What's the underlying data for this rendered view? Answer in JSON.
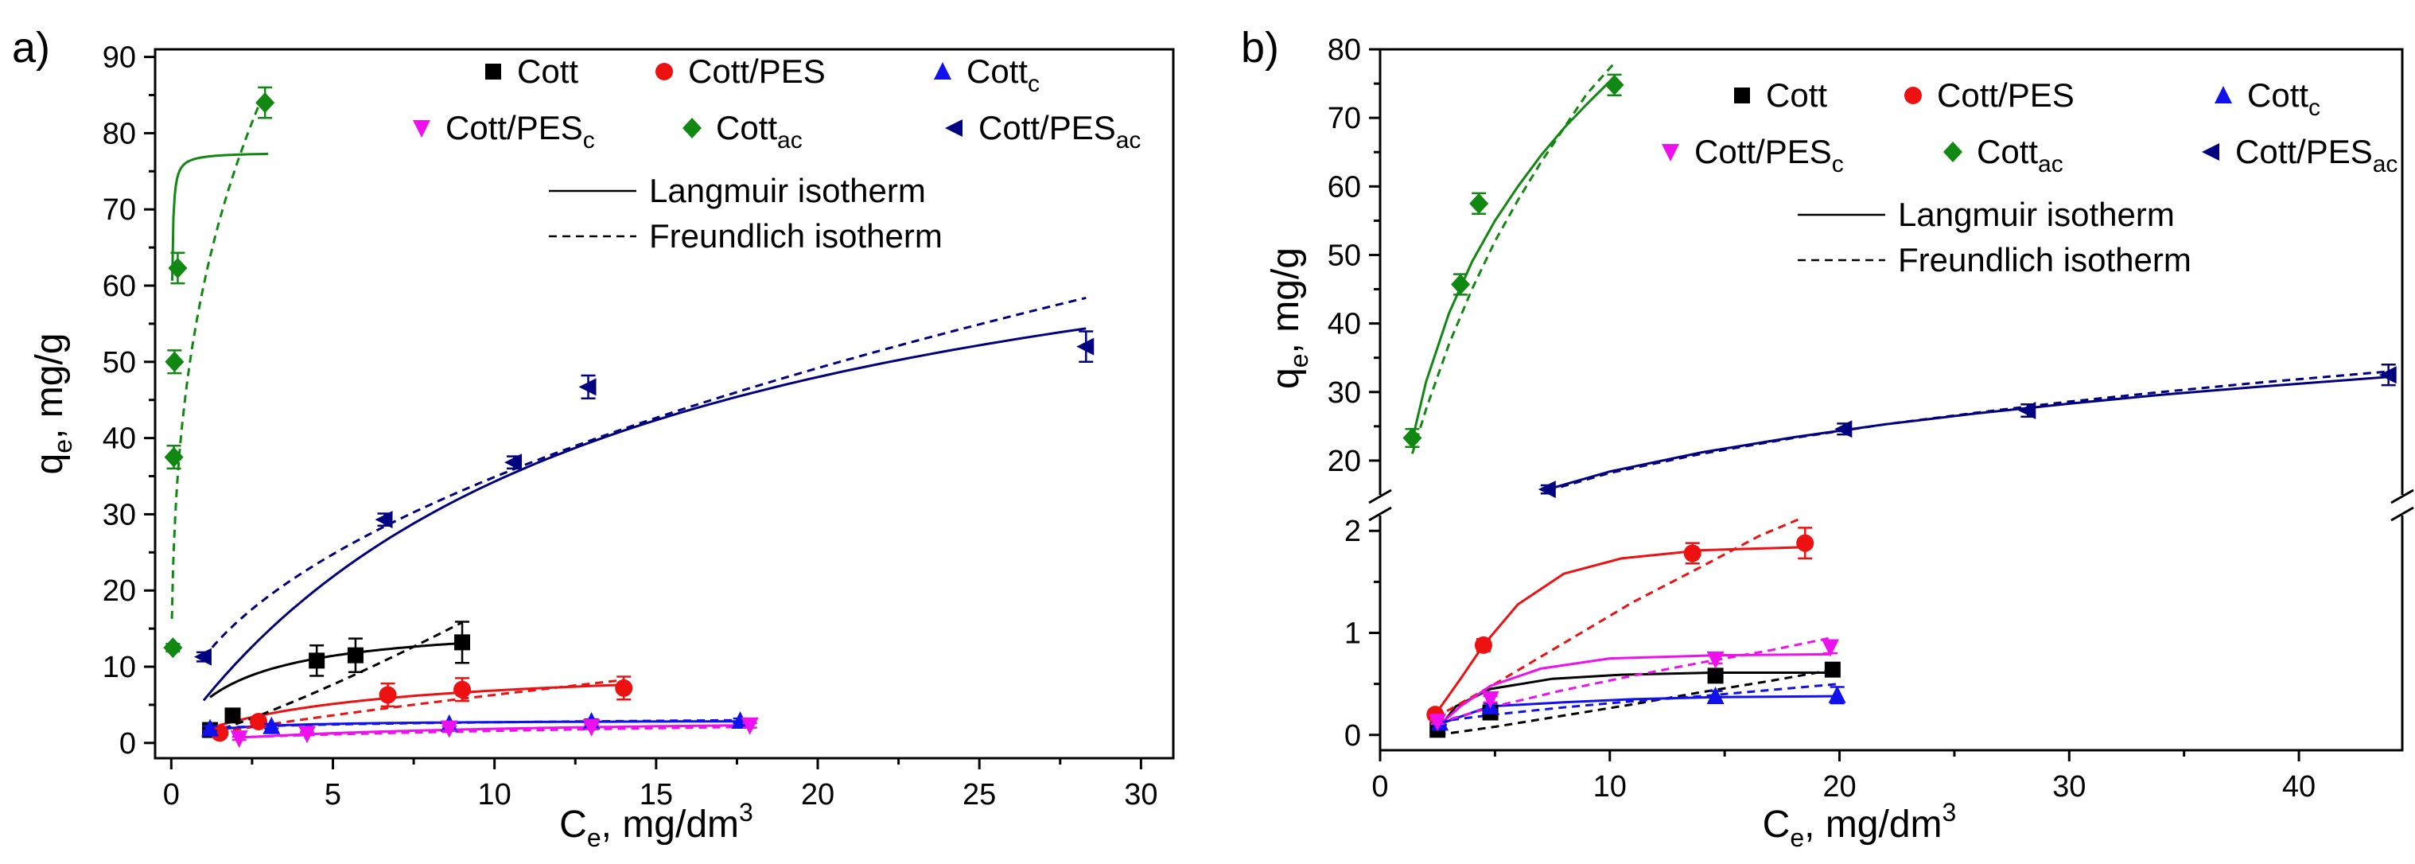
{
  "colors": {
    "Cott": "#000000",
    "Cott/PES": "#ee1111",
    "Cott_c": "#1111ee",
    "Cott/PES_c": "#ee11ee",
    "Cott_ac": "#118811",
    "Cott/PES_ac": "#000080"
  },
  "legend": {
    "entries": [
      {
        "key": "Cott",
        "base": "Cott",
        "sub": "",
        "marker": "square"
      },
      {
        "key": "Cott/PES",
        "base": "Cott/PES",
        "sub": "",
        "marker": "circle"
      },
      {
        "key": "Cott_c",
        "base": "Cott",
        "sub": "c",
        "marker": "triangle-up"
      },
      {
        "key": "Cott/PES_c",
        "base": "Cott/PES",
        "sub": "c",
        "marker": "triangle-down"
      },
      {
        "key": "Cott_ac",
        "base": "Cott",
        "sub": "ac",
        "marker": "diamond"
      },
      {
        "key": "Cott/PES_ac",
        "base": "Cott/PES",
        "sub": "ac",
        "marker": "triangle-left"
      }
    ],
    "line_entries": [
      {
        "label": "Langmuir isotherm",
        "style": "solid"
      },
      {
        "label": "Freundlich isotherm",
        "style": "dashed"
      }
    ]
  },
  "chart_data": [
    {
      "panel": "a)",
      "type": "scatter",
      "xlabel": {
        "main": "C",
        "sub": "e",
        "rest": ", mg/dm",
        "sup": "3"
      },
      "ylabel": {
        "main": "q",
        "sub": "e",
        "rest": ", mg/g"
      },
      "xlim": [
        -0.5,
        31
      ],
      "ylim": [
        -2,
        91
      ],
      "xticks": [
        0,
        5,
        10,
        15,
        20,
        25,
        30
      ],
      "yticks": [
        0,
        10,
        20,
        30,
        40,
        50,
        60,
        70,
        80,
        90
      ],
      "series": [
        {
          "name": "Cott",
          "points": [
            [
              1.2,
              1.7
            ],
            [
              1.9,
              3.6
            ],
            [
              4.5,
              10.8
            ],
            [
              5.7,
              11.5
            ],
            [
              9.0,
              13.2
            ]
          ],
          "errors": [
            0.4,
            0.6,
            2.0,
            2.2,
            2.7
          ]
        },
        {
          "name": "Cott/PES",
          "points": [
            [
              1.5,
              1.3
            ],
            [
              2.7,
              2.8
            ],
            [
              6.7,
              6.3
            ],
            [
              9.0,
              7.0
            ],
            [
              14.0,
              7.2
            ]
          ],
          "errors": [
            0.3,
            0.5,
            1.5,
            1.5,
            1.5
          ]
        },
        {
          "name": "Cott_c",
          "points": [
            [
              1.2,
              1.9
            ],
            [
              3.1,
              2.2
            ],
            [
              8.6,
              2.5
            ],
            [
              13.0,
              2.8
            ],
            [
              17.6,
              2.9
            ]
          ],
          "errors": [
            0.3,
            0.3,
            0.3,
            0.3,
            0.3
          ]
        },
        {
          "name": "Cott/PES_c",
          "points": [
            [
              2.1,
              0.6
            ],
            [
              4.2,
              1.2
            ],
            [
              8.6,
              1.9
            ],
            [
              13.0,
              2.1
            ],
            [
              17.9,
              2.3
            ]
          ],
          "errors": [
            0.2,
            0.2,
            0.3,
            0.3,
            0.3
          ]
        },
        {
          "name": "Cott_ac",
          "points": [
            [
              0.05,
              12.5
            ],
            [
              0.08,
              37.5
            ],
            [
              0.1,
              50.0
            ],
            [
              0.2,
              62.3
            ],
            [
              2.9,
              84.0
            ]
          ],
          "errors": [
            0.5,
            1.5,
            1.5,
            2.0,
            2.0
          ]
        },
        {
          "name": "Cott/PES_ac",
          "points": [
            [
              1.0,
              11.3
            ],
            [
              6.6,
              29.3
            ],
            [
              10.6,
              36.8
            ],
            [
              12.9,
              46.7
            ],
            [
              28.3,
              52.0
            ]
          ],
          "errors": [
            0.6,
            0.8,
            0.8,
            1.5,
            2.0
          ]
        }
      ],
      "langmuir": [
        {
          "name": "Cott",
          "qm": 16,
          "KL": 0.5,
          "x": [
            1.2,
            9.0
          ]
        },
        {
          "name": "Cott/PES",
          "qm": 10.5,
          "KL": 0.19,
          "x": [
            1.5,
            14.0
          ]
        },
        {
          "name": "Cott_c",
          "qm": 3.0,
          "KL": 1.0,
          "x": [
            1.2,
            17.6
          ]
        },
        {
          "name": "Cott/PES_c",
          "qm": 3.4,
          "KL": 0.12,
          "x": [
            2.1,
            17.9
          ]
        },
        {
          "name": "Cott_ac",
          "qm": 77.5,
          "KL": 120,
          "x": [
            0.03,
            3.0
          ]
        },
        {
          "name": "Cott/PES_ac",
          "qm": 80,
          "KL": 0.075,
          "x": [
            1.0,
            28.3
          ]
        }
      ],
      "freundlich": [
        {
          "name": "Cott",
          "KF": 1.05,
          "n": 0.81,
          "x": [
            1.2,
            9.0
          ]
        },
        {
          "name": "Cott/PES",
          "KF": 1.0,
          "n": 1.25,
          "x": [
            1.5,
            14.0
          ]
        },
        {
          "name": "Cott_c",
          "KF": 1.85,
          "n": 6.0,
          "x": [
            1.2,
            17.6
          ]
        },
        {
          "name": "Cott/PES_c",
          "KF": 0.5,
          "n": 2.0,
          "x": [
            2.1,
            17.9
          ]
        },
        {
          "name": "Cott_ac",
          "KF": 60,
          "n": 3.0,
          "x": [
            0.02,
            2.8
          ]
        },
        {
          "name": "Cott/PES_ac",
          "KF": 11.16,
          "n": 2.02,
          "x": [
            1.0,
            28.3
          ]
        }
      ]
    },
    {
      "panel": "b)",
      "type": "scatter",
      "xlabel": {
        "main": "C",
        "sub": "e",
        "rest": ", mg/dm",
        "sup": "3"
      },
      "ylabel": {
        "main": "q",
        "sub": "e",
        "rest": ", mg/g"
      },
      "xlim": [
        0,
        44.5
      ],
      "y_broken": true,
      "ylim_lower": [
        -0.15,
        2.15
      ],
      "ylim_upper": [
        15,
        80
      ],
      "xticks": [
        0,
        10,
        20,
        30,
        40
      ],
      "yticks_lower": [
        0,
        1,
        2
      ],
      "yticks_upper": [
        20,
        30,
        40,
        50,
        60,
        70,
        80
      ],
      "series": [
        {
          "name": "Cott",
          "points": [
            [
              2.5,
              0.05
            ],
            [
              4.8,
              0.22
            ],
            [
              14.6,
              0.58
            ],
            [
              19.7,
              0.64
            ]
          ],
          "errors": [
            0.02,
            0.03,
            0.04,
            0.04
          ]
        },
        {
          "name": "Cott/PES",
          "points": [
            [
              2.4,
              0.2
            ],
            [
              4.5,
              0.88
            ],
            [
              13.6,
              1.78
            ],
            [
              18.5,
              1.88
            ]
          ],
          "errors": [
            0.04,
            0.06,
            0.1,
            0.15
          ]
        },
        {
          "name": "Cott_c",
          "points": [
            [
              2.6,
              0.12
            ],
            [
              4.8,
              0.28
            ],
            [
              14.6,
              0.38
            ],
            [
              19.9,
              0.39
            ]
          ],
          "errors": [
            0.02,
            0.03,
            0.05,
            0.08
          ]
        },
        {
          "name": "Cott/PES_c",
          "points": [
            [
              2.5,
              0.13
            ],
            [
              4.8,
              0.35
            ],
            [
              14.6,
              0.74
            ],
            [
              19.6,
              0.86
            ]
          ],
          "errors": [
            0.02,
            0.03,
            0.04,
            0.06
          ]
        },
        {
          "name": "Cott_ac",
          "points": [
            [
              1.4,
              23.3
            ],
            [
              3.5,
              45.7
            ],
            [
              4.3,
              57.5
            ],
            [
              10.2,
              74.8
            ]
          ],
          "errors": [
            1.3,
            1.5,
            1.5,
            1.5
          ]
        },
        {
          "name": "Cott/PES_ac",
          "points": [
            [
              7.3,
              15.8
            ],
            [
              20.2,
              24.6
            ],
            [
              28.2,
              27.3
            ],
            [
              43.9,
              32.5
            ]
          ],
          "errors": [
            0.6,
            0.8,
            0.9,
            1.5
          ]
        }
      ],
      "curves_lower": [
        {
          "name": "Cott",
          "style": "solid",
          "pts": [
            [
              2.5,
              0.05
            ],
            [
              3.3,
              0.28
            ],
            [
              4.8,
              0.45
            ],
            [
              7.5,
              0.55
            ],
            [
              10.5,
              0.59
            ],
            [
              14.5,
              0.61
            ],
            [
              20,
              0.61
            ]
          ]
        },
        {
          "name": "Cott",
          "style": "dashed",
          "pts": [
            [
              2.5,
              0.0
            ],
            [
              5,
              0.08
            ],
            [
              8,
              0.19
            ],
            [
              11,
              0.3
            ],
            [
              14,
              0.42
            ],
            [
              17,
              0.53
            ],
            [
              20,
              0.65
            ]
          ]
        },
        {
          "name": "Cott/PES",
          "style": "solid",
          "pts": [
            [
              2.4,
              0.2
            ],
            [
              3.5,
              0.55
            ],
            [
              4.5,
              0.88
            ],
            [
              6,
              1.28
            ],
            [
              8,
              1.58
            ],
            [
              10.5,
              1.73
            ],
            [
              14,
              1.81
            ],
            [
              18.5,
              1.84
            ]
          ]
        },
        {
          "name": "Cott/PES",
          "style": "dashed",
          "pts": [
            [
              2.4,
              0.17
            ],
            [
              5,
              0.5
            ],
            [
              8,
              0.9
            ],
            [
              11,
              1.3
            ],
            [
              14,
              1.65
            ],
            [
              16.5,
              1.95
            ],
            [
              18.3,
              2.12
            ]
          ]
        },
        {
          "name": "Cott_c",
          "style": "solid",
          "pts": [
            [
              2.5,
              0.1
            ],
            [
              4.8,
              0.28
            ],
            [
              8,
              0.32
            ],
            [
              11,
              0.35
            ],
            [
              14.6,
              0.37
            ],
            [
              20,
              0.38
            ]
          ]
        },
        {
          "name": "Cott_c",
          "style": "dashed",
          "pts": [
            [
              2.5,
              0.13
            ],
            [
              5,
              0.2
            ],
            [
              8,
              0.27
            ],
            [
              11,
              0.33
            ],
            [
              14,
              0.38
            ],
            [
              17,
              0.44
            ],
            [
              20,
              0.5
            ]
          ]
        },
        {
          "name": "Cott/PES_c",
          "style": "solid",
          "pts": [
            [
              2.5,
              0.08
            ],
            [
              3.5,
              0.28
            ],
            [
              4.8,
              0.48
            ],
            [
              7,
              0.65
            ],
            [
              10,
              0.75
            ],
            [
              14.6,
              0.78
            ],
            [
              19.6,
              0.79
            ]
          ]
        },
        {
          "name": "Cott/PES_c",
          "style": "dashed",
          "pts": [
            [
              2.5,
              0.12
            ],
            [
              5,
              0.28
            ],
            [
              8,
              0.44
            ],
            [
              11,
              0.58
            ],
            [
              14,
              0.71
            ],
            [
              17,
              0.83
            ],
            [
              19.6,
              0.95
            ]
          ]
        }
      ],
      "curves_upper": [
        {
          "name": "Cott_ac",
          "style": "solid",
          "pts": [
            [
              1.4,
              23.0
            ],
            [
              2,
              31.5
            ],
            [
              3,
              41.5
            ],
            [
              4,
              49.0
            ],
            [
              5,
              55.0
            ],
            [
              6,
              60.0
            ],
            [
              7,
              64.5
            ],
            [
              8,
              68.5
            ],
            [
              9,
              72.0
            ],
            [
              10.2,
              76.0
            ]
          ]
        },
        {
          "name": "Cott_ac",
          "style": "dashed",
          "pts": [
            [
              1.4,
              21.0
            ],
            [
              2,
              27.5
            ],
            [
              3,
              37.0
            ],
            [
              4,
              45.0
            ],
            [
              5,
              52.0
            ],
            [
              6,
              58.0
            ],
            [
              7,
              63.5
            ],
            [
              8,
              68.5
            ],
            [
              9,
              73.5
            ],
            [
              10.2,
              78.0
            ]
          ]
        },
        {
          "name": "Cott/PES_ac",
          "style": "solid",
          "pts": [
            [
              7.3,
              15.8
            ],
            [
              10,
              18.4
            ],
            [
              14,
              21.2
            ],
            [
              18,
              23.4
            ],
            [
              22,
              25.3
            ],
            [
              26,
              26.9
            ],
            [
              30,
              28.3
            ],
            [
              34,
              29.6
            ],
            [
              38,
              30.7
            ],
            [
              43.9,
              32.2
            ]
          ]
        },
        {
          "name": "Cott/PES_ac",
          "style": "dashed",
          "pts": [
            [
              7.3,
              15.6
            ],
            [
              10,
              18.2
            ],
            [
              14,
              21.0
            ],
            [
              18,
              23.3
            ],
            [
              22,
              25.3
            ],
            [
              26,
              27.0
            ],
            [
              30,
              28.6
            ],
            [
              34,
              30.0
            ],
            [
              38,
              31.3
            ],
            [
              43.9,
              33.0
            ]
          ]
        }
      ]
    }
  ]
}
